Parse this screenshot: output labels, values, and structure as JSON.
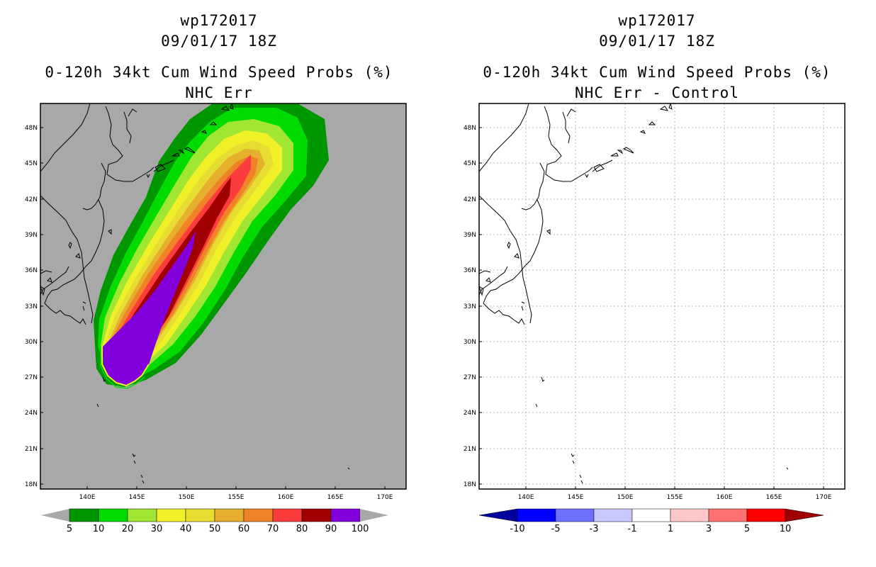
{
  "left": {
    "title_lines": [
      "wp172017",
      "09/01/17 18Z",
      "0-120h 34kt Cum Wind Speed Probs (%)",
      "NHC Err"
    ],
    "background": "#a8a8a8",
    "lat_labels": [
      "48N",
      "45N",
      "42N",
      "39N",
      "36N",
      "33N",
      "30N",
      "27N",
      "24N",
      "21N",
      "18N"
    ],
    "lon_labels": [
      "140E",
      "145E",
      "150E",
      "155E",
      "160E",
      "165E",
      "170E"
    ],
    "colorbar": {
      "colors": [
        "#009600",
        "#00dc00",
        "#a0e632",
        "#f0f028",
        "#e6dc32",
        "#e6af2d",
        "#f08228",
        "#fa3c3c",
        "#a00000",
        "#8200dc"
      ],
      "labels": [
        "5",
        "10",
        "20",
        "30",
        "40",
        "50",
        "60",
        "70",
        "80",
        "90",
        "100"
      ]
    }
  },
  "right": {
    "title_lines": [
      "wp172017",
      "09/01/17 18Z",
      "0-120h 34kt Cum Wind Speed Probs (%)",
      "NHC Err - Control"
    ],
    "background": "#ffffff",
    "lat_labels": [
      "48N",
      "45N",
      "42N",
      "39N",
      "36N",
      "33N",
      "30N",
      "27N",
      "24N",
      "21N",
      "18N"
    ],
    "lon_labels": [
      "140E",
      "145E",
      "150E",
      "155E",
      "160E",
      "165E",
      "170E"
    ],
    "colorbar": {
      "colors": [
        "#0000a0",
        "#0000ff",
        "#7070ff",
        "#c8c8ff",
        "#ffffff",
        "#ffc8c8",
        "#ff7070",
        "#ff0000",
        "#a00000"
      ],
      "labels": [
        "-10",
        "-5",
        "-3",
        "-1",
        "1",
        "3",
        "5",
        "10"
      ]
    }
  }
}
